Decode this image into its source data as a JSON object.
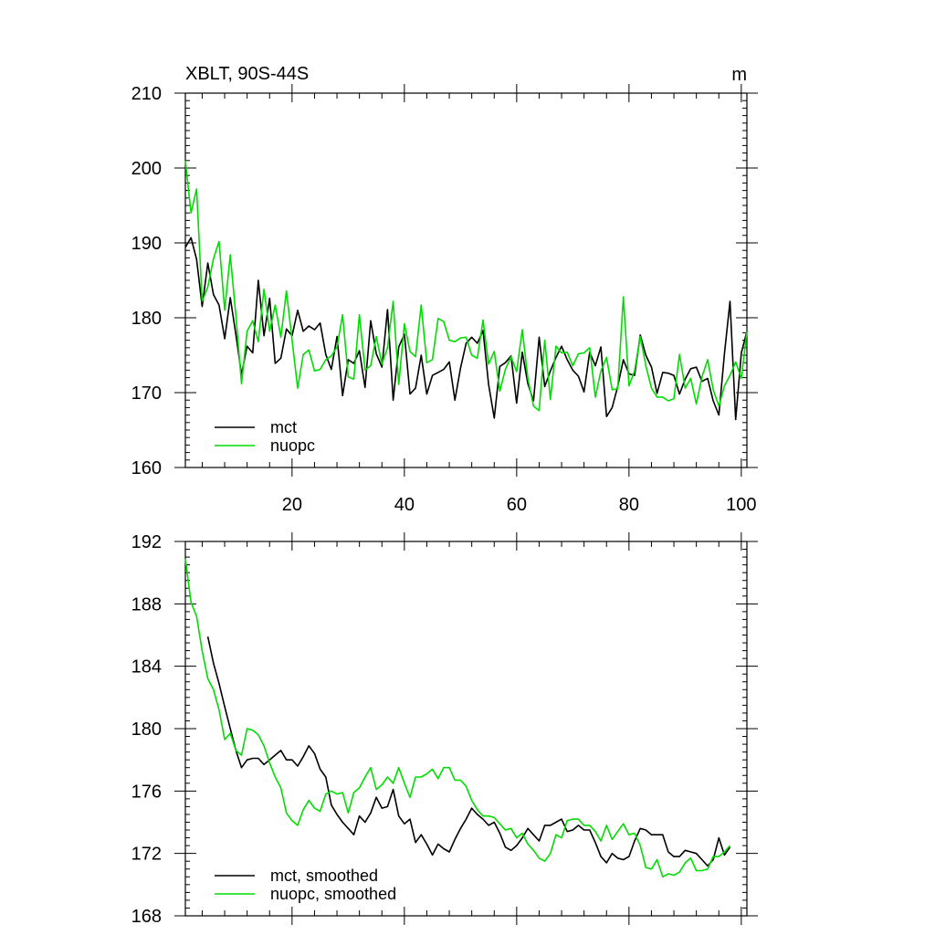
{
  "chart_data": [
    {
      "type": "line",
      "title": "XBLT, 90S-44S",
      "units": "m",
      "xlim": [
        1,
        101
      ],
      "ylim": [
        160,
        210
      ],
      "x_ticks": [
        20,
        40,
        60,
        80,
        100
      ],
      "y_ticks": [
        160,
        170,
        180,
        190,
        200,
        210
      ],
      "legend_position": "bottom-left",
      "series": [
        {
          "name": "mct",
          "color": "#000000",
          "x": [
            1,
            2,
            3,
            4,
            5,
            6,
            7,
            8,
            9,
            10,
            11,
            12,
            13,
            14,
            15,
            16,
            17,
            18,
            19,
            20,
            21,
            22,
            23,
            24,
            25,
            26,
            27,
            28,
            29,
            30,
            31,
            32,
            33,
            34,
            35,
            36,
            37,
            38,
            39,
            40,
            41,
            42,
            43,
            44,
            45,
            46,
            47,
            48,
            49,
            50,
            51,
            52,
            53,
            54,
            55,
            56,
            57,
            58,
            59,
            60,
            61,
            62,
            63,
            64,
            65,
            66,
            67,
            68,
            69,
            70,
            71,
            72,
            73,
            74,
            75,
            76,
            77,
            78,
            79,
            80,
            81,
            82,
            83,
            84,
            85,
            86,
            87,
            88,
            89,
            90,
            91,
            92,
            93,
            94,
            95,
            96,
            97,
            98,
            99,
            100,
            101
          ],
          "values": [
            189.4,
            190.7,
            187.8,
            181.5,
            187.3,
            183.1,
            181.7,
            177.2,
            182.7,
            177.7,
            172.4,
            176.2,
            175.3,
            185.0,
            177.6,
            182.6,
            173.9,
            174.6,
            178.5,
            177.6,
            181.0,
            178.2,
            178.9,
            178.4,
            179.3,
            175.1,
            173.1,
            177.5,
            169.6,
            174.4,
            173.9,
            175.6,
            170.7,
            179.6,
            175.2,
            173.4,
            181.1,
            169.0,
            176.1,
            177.8,
            169.8,
            170.6,
            175.0,
            169.8,
            172.3,
            172.7,
            173.1,
            174.1,
            169.0,
            173.3,
            176.6,
            177.4,
            176.6,
            178.3,
            171.1,
            166.6,
            173.5,
            174.0,
            174.9,
            168.6,
            175.4,
            171.2,
            168.9,
            177.4,
            170.8,
            172.9,
            174.7,
            176.2,
            174.4,
            173.0,
            172.2,
            170.1,
            175.4,
            173.6,
            176.1,
            166.8,
            168.0,
            170.8,
            174.4,
            172.5,
            172.3,
            177.7,
            175.0,
            173.4,
            169.9,
            172.7,
            172.6,
            172.3,
            169.8,
            171.8,
            173.2,
            173.4,
            171.5,
            171.9,
            168.9,
            167.0,
            175.2,
            182.2,
            166.4,
            175.3,
            178.2
          ]
        },
        {
          "name": "nuopc",
          "color": "#00dd00",
          "x": [
            1,
            2,
            3,
            4,
            5,
            6,
            7,
            8,
            9,
            10,
            11,
            12,
            13,
            14,
            15,
            16,
            17,
            18,
            19,
            20,
            21,
            22,
            23,
            24,
            25,
            26,
            27,
            28,
            29,
            30,
            31,
            32,
            33,
            34,
            35,
            36,
            37,
            38,
            39,
            40,
            41,
            42,
            43,
            44,
            45,
            46,
            47,
            48,
            49,
            50,
            51,
            52,
            53,
            54,
            55,
            56,
            57,
            58,
            59,
            60,
            61,
            62,
            63,
            64,
            65,
            66,
            67,
            68,
            69,
            70,
            71,
            72,
            73,
            74,
            75,
            76,
            77,
            78,
            79,
            80,
            81,
            82,
            83,
            84,
            85,
            86,
            87,
            88,
            89,
            90,
            91,
            92,
            93,
            94,
            95,
            96,
            97,
            98,
            99,
            100,
            101
          ],
          "values": [
            201.0,
            194.0,
            197.2,
            182.2,
            184.1,
            187.9,
            190.2,
            181.0,
            188.4,
            180.2,
            171.2,
            178.2,
            179.6,
            176.8,
            183.8,
            178.2,
            181.7,
            177.4,
            183.6,
            177.0,
            170.6,
            175.1,
            175.7,
            172.9,
            173.1,
            174.4,
            174.9,
            176.1,
            180.4,
            172.1,
            171.8,
            180.4,
            173.0,
            173.6,
            177.5,
            173.8,
            176.0,
            182.2,
            171.1,
            179.2,
            175.5,
            174.8,
            181.7,
            174.0,
            174.4,
            179.9,
            179.5,
            177.0,
            176.8,
            177.3,
            177.4,
            175.0,
            174.6,
            179.7,
            173.8,
            175.5,
            170.2,
            173.1,
            174.8,
            172.8,
            178.4,
            171.9,
            168.2,
            167.6,
            177.0,
            169.1,
            176.2,
            175.3,
            175.4,
            173.6,
            175.2,
            175.3,
            176.0,
            169.4,
            172.9,
            174.7,
            170.4,
            170.5,
            182.8,
            170.9,
            172.9,
            177.5,
            173.6,
            170.6,
            169.4,
            169.4,
            168.9,
            169.2,
            175.1,
            170.6,
            171.9,
            168.5,
            172.1,
            174.4,
            170.4,
            168.2,
            170.9,
            172.3,
            174.1,
            171.9,
            178.2
          ]
        }
      ]
    },
    {
      "type": "line",
      "xlim": [
        1,
        101
      ],
      "ylim": [
        168,
        192
      ],
      "x_ticks": [
        20,
        40,
        60,
        80,
        100
      ],
      "y_ticks": [
        168,
        172,
        176,
        180,
        184,
        188,
        192
      ],
      "legend_position": "bottom-left",
      "series": [
        {
          "name": "mct, smoothed",
          "color": "#000000",
          "x": [
            5,
            6,
            7,
            8,
            9,
            10,
            11,
            12,
            13,
            14,
            15,
            16,
            17,
            18,
            19,
            20,
            21,
            22,
            23,
            24,
            25,
            26,
            27,
            28,
            29,
            30,
            31,
            32,
            33,
            34,
            35,
            36,
            37,
            38,
            39,
            40,
            41,
            42,
            43,
            44,
            45,
            46,
            47,
            48,
            49,
            50,
            51,
            52,
            53,
            54,
            55,
            56,
            57,
            58,
            59,
            60,
            61,
            62,
            63,
            64,
            65,
            66,
            67,
            68,
            69,
            70,
            71,
            72,
            73,
            74,
            75,
            76,
            77,
            78,
            79,
            80,
            81,
            82,
            83,
            84,
            85,
            86,
            87,
            88,
            89,
            90,
            91,
            92,
            93,
            94,
            95,
            96,
            97,
            98
          ],
          "values": [
            185.9,
            184.2,
            182.9,
            181.4,
            180.0,
            178.6,
            177.5,
            178.0,
            178.1,
            178.1,
            177.7,
            178.0,
            178.3,
            178.6,
            178.0,
            178.0,
            177.6,
            178.2,
            178.9,
            178.4,
            177.4,
            176.9,
            175.1,
            174.5,
            174.0,
            173.6,
            173.2,
            174.4,
            174.0,
            174.6,
            175.6,
            174.9,
            175.0,
            176.1,
            174.4,
            173.9,
            174.2,
            172.7,
            173.2,
            172.6,
            171.9,
            172.6,
            172.3,
            172.1,
            172.9,
            173.6,
            174.2,
            174.9,
            174.5,
            174.2,
            173.8,
            174.0,
            173.3,
            172.4,
            172.2,
            172.5,
            173.0,
            173.6,
            173.2,
            172.8,
            173.8,
            173.8,
            174.0,
            174.2,
            173.4,
            173.5,
            173.8,
            173.5,
            173.5,
            172.7,
            171.8,
            171.4,
            172.0,
            171.7,
            171.6,
            171.8,
            172.8,
            173.6,
            173.5,
            173.2,
            173.2,
            173.2,
            172.1,
            171.8,
            171.8,
            172.2,
            172.1,
            172.0,
            171.6,
            171.2,
            171.6,
            173.0,
            171.9,
            172.4
          ]
        },
        {
          "name": "nuopc, smoothed",
          "color": "#00dd00",
          "x": [
            1,
            2,
            3,
            4,
            5,
            6,
            7,
            8,
            9,
            10,
            11,
            12,
            13,
            14,
            15,
            16,
            17,
            18,
            19,
            20,
            21,
            22,
            23,
            24,
            25,
            26,
            27,
            28,
            29,
            30,
            31,
            32,
            33,
            34,
            35,
            36,
            37,
            38,
            39,
            40,
            41,
            42,
            43,
            44,
            45,
            46,
            47,
            48,
            49,
            50,
            51,
            52,
            53,
            54,
            55,
            56,
            57,
            58,
            59,
            60,
            61,
            62,
            63,
            64,
            65,
            66,
            67,
            68,
            69,
            70,
            71,
            72,
            73,
            74,
            75,
            76,
            77,
            78,
            79,
            80,
            81,
            82,
            83,
            84,
            85,
            86,
            87,
            88,
            89,
            90,
            91,
            92,
            93,
            94,
            95,
            96,
            97,
            98
          ],
          "values": [
            190.9,
            188.1,
            187.2,
            185.0,
            183.2,
            182.5,
            181.2,
            179.3,
            179.7,
            178.6,
            178.3,
            180.0,
            179.9,
            179.6,
            178.9,
            177.8,
            176.9,
            176.2,
            174.6,
            174.1,
            173.8,
            174.8,
            175.4,
            174.9,
            174.7,
            175.8,
            176.0,
            175.8,
            175.9,
            174.6,
            175.9,
            176.2,
            176.9,
            177.5,
            176.1,
            176.4,
            176.9,
            176.5,
            177.5,
            176.5,
            175.6,
            176.9,
            176.9,
            177.1,
            177.4,
            176.8,
            177.5,
            177.5,
            176.7,
            176.7,
            176.3,
            175.4,
            174.8,
            174.4,
            174.4,
            174.3,
            173.9,
            173.5,
            173.6,
            173.0,
            173.3,
            172.6,
            172.2,
            171.7,
            171.5,
            172.0,
            173.2,
            173.0,
            174.1,
            174.2,
            174.2,
            173.8,
            173.8,
            173.4,
            172.8,
            173.8,
            172.9,
            173.4,
            173.9,
            173.2,
            173.3,
            172.5,
            171.1,
            171.0,
            171.6,
            170.5,
            170.7,
            170.6,
            170.8,
            171.4,
            171.7,
            170.9,
            170.9,
            171.0,
            171.8,
            171.8,
            172.1,
            172.5
          ]
        }
      ]
    }
  ]
}
